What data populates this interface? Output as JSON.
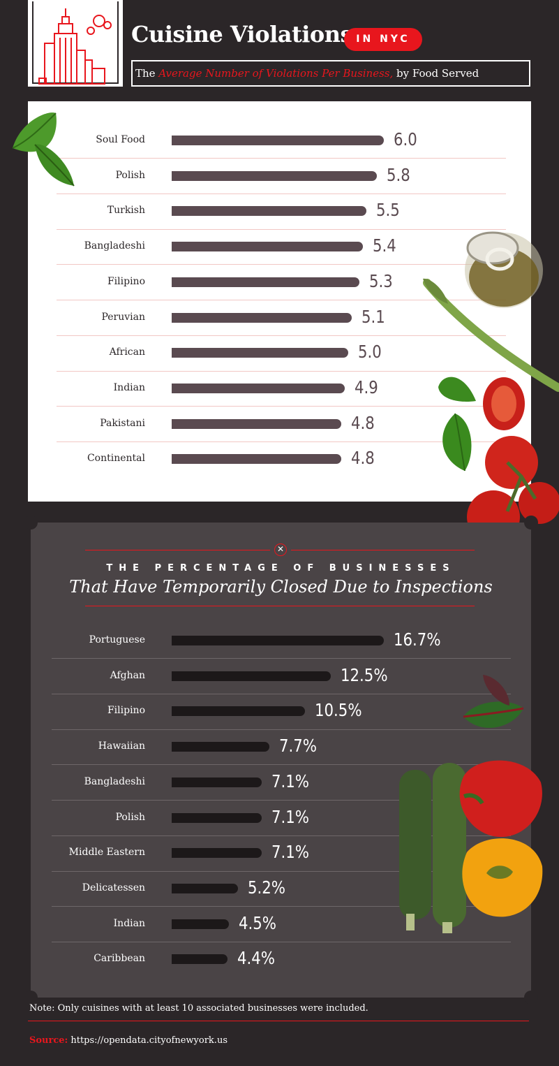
{
  "header": {
    "title": "Cuisine Violations",
    "badge": "IN NYC",
    "subtitle_prefix": "The ",
    "subtitle_highlight": "Average Number of Violations Per Business,",
    "subtitle_suffix": " by Food Served"
  },
  "section2": {
    "kicker": "THE PERCENTAGE OF BUSINESSES",
    "title": "That Have Temporarily Closed Due to Inspections"
  },
  "footer": {
    "note": "Note: Only cuisines with at least 10 associated businesses were included.",
    "source_label": "Source:",
    "source_url": "https://opendata.cityofnewyork.us"
  },
  "colors": {
    "background": "#2b2628",
    "accent_red": "#e8161d",
    "bar_violations": "#5a4a50",
    "bar_closures": "#1c1819"
  },
  "icons": [
    "city-skyline-icon",
    "close-circle-icon",
    "leaf-icon",
    "oil-bottle-icon",
    "asparagus-icon",
    "basil-icon",
    "tomato-icon",
    "chard-leaf-icon",
    "zucchini-icon",
    "bell-pepper-icon"
  ],
  "chart_data": [
    {
      "type": "bar",
      "orientation": "horizontal",
      "title": "",
      "categories": [
        "Soul Food",
        "Polish",
        "Turkish",
        "Bangladeshi",
        "Filipino",
        "Peruvian",
        "African",
        "Indian",
        "Pakistani",
        "Continental"
      ],
      "values": [
        6.0,
        5.8,
        5.5,
        5.4,
        5.3,
        5.1,
        5.0,
        4.9,
        4.8,
        4.8
      ],
      "labels": [
        "6.0",
        "5.8",
        "5.5",
        "5.4",
        "5.3",
        "5.1",
        "5.0",
        "4.9",
        "4.8",
        "4.8"
      ],
      "xlim": [
        0,
        6.0
      ],
      "grid": false
    },
    {
      "type": "bar",
      "orientation": "horizontal",
      "title": "",
      "categories": [
        "Portuguese",
        "Afghan",
        "Filipino",
        "Hawaiian",
        "Bangladeshi",
        "Polish",
        "Middle Eastern",
        "Delicatessen",
        "Indian",
        "Caribbean"
      ],
      "values": [
        16.7,
        12.5,
        10.5,
        7.7,
        7.1,
        7.1,
        7.1,
        5.2,
        4.5,
        4.4
      ],
      "labels": [
        "16.7%",
        "12.5%",
        "10.5%",
        "7.7%",
        "7.1%",
        "7.1%",
        "7.1%",
        "5.2%",
        "4.5%",
        "4.4%"
      ],
      "xlim": [
        0,
        16.7
      ],
      "grid": false
    }
  ]
}
